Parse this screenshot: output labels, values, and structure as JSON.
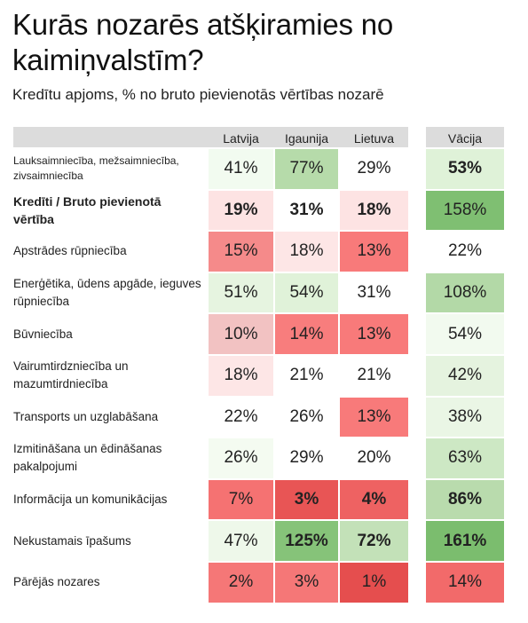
{
  "title": "Kurās nozarēs atšķiramies no kaimiņvalstīm?",
  "subtitle": "Kredītu apjoms, % no bruto pievienotās vērtības nozarē",
  "chart_data": {
    "type": "table",
    "columns": [
      "Latvija",
      "Igaunija",
      "Lietuva",
      "Vācija"
    ],
    "rows": [
      {
        "label": "Lauksaimniecība, mežsaimniecība, zivsaimniecība",
        "values": [
          41,
          77,
          29,
          53
        ],
        "display": [
          "41%",
          "77%",
          "29%",
          "53%"
        ],
        "bold": [
          false,
          false,
          false,
          true
        ],
        "colors": [
          "#f2fbf0",
          "#b6dbaa",
          "#ffffff",
          "#dff2d8"
        ],
        "label_bold": false,
        "label_small": true
      },
      {
        "label": "Kredīti / Bruto pievienotā vērtība",
        "values": [
          19,
          31,
          18,
          158
        ],
        "display": [
          "19%",
          "31%",
          "18%",
          "158%"
        ],
        "bold": [
          true,
          true,
          true,
          false
        ],
        "colors": [
          "#fde3e3",
          "#ffffff",
          "#fde3e3",
          "#7fbf72"
        ],
        "label_bold": true,
        "label_small": false
      },
      {
        "label": "Apstrādes rūpniecība",
        "values": [
          15,
          18,
          13,
          22
        ],
        "display": [
          "15%",
          "18%",
          "13%",
          "22%"
        ],
        "bold": [
          false,
          false,
          false,
          false
        ],
        "colors": [
          "#f58a8a",
          "#fde6e6",
          "#f87a7a",
          "#ffffff"
        ],
        "label_bold": false,
        "label_small": false
      },
      {
        "label": "Enerģētika, ūdens apgāde, ieguves rūpniecība",
        "values": [
          51,
          54,
          31,
          108
        ],
        "display": [
          "51%",
          "54%",
          "31%",
          "108%"
        ],
        "bold": [
          false,
          false,
          false,
          false
        ],
        "colors": [
          "#e6f4e0",
          "#e0f2d9",
          "#ffffff",
          "#b3d9a7"
        ],
        "label_bold": false,
        "label_small": false
      },
      {
        "label": "Būvniecība",
        "values": [
          10,
          14,
          13,
          54
        ],
        "display": [
          "10%",
          "14%",
          "13%",
          "54%"
        ],
        "bold": [
          false,
          false,
          false,
          false
        ],
        "colors": [
          "#f2c2c2",
          "#f87d7d",
          "#f87a7a",
          "#f2faef"
        ],
        "label_bold": false,
        "label_small": false
      },
      {
        "label": "Vairumtirdzniecība un mazumtirdniecība",
        "values": [
          18,
          21,
          21,
          42
        ],
        "display": [
          "18%",
          "21%",
          "21%",
          "42%"
        ],
        "bold": [
          false,
          false,
          false,
          false
        ],
        "colors": [
          "#fde6e6",
          "#ffffff",
          "#ffffff",
          "#e5f3df"
        ],
        "label_bold": false,
        "label_small": false
      },
      {
        "label": "Transports un uzglabāšana",
        "values": [
          22,
          26,
          13,
          38
        ],
        "display": [
          "22%",
          "26%",
          "13%",
          "38%"
        ],
        "bold": [
          false,
          false,
          false,
          false
        ],
        "colors": [
          "#ffffff",
          "#ffffff",
          "#f87a7a",
          "#eaf6e5"
        ],
        "label_bold": false,
        "label_small": false
      },
      {
        "label": "Izmitināšana un ēdināšanas pakalpojumi",
        "values": [
          26,
          29,
          20,
          63
        ],
        "display": [
          "26%",
          "29%",
          "20%",
          "63%"
        ],
        "bold": [
          false,
          false,
          false,
          false
        ],
        "colors": [
          "#f4fbf1",
          "#ffffff",
          "#ffffff",
          "#cde8c4"
        ],
        "label_bold": false,
        "label_small": false
      },
      {
        "label": "Informācija un komunikācijas",
        "values": [
          7,
          3,
          4,
          86
        ],
        "display": [
          "7%",
          "3%",
          "4%",
          "86%"
        ],
        "bold": [
          false,
          true,
          true,
          true
        ],
        "colors": [
          "#f57272",
          "#e85555",
          "#ee6262",
          "#b9dbad"
        ],
        "label_bold": false,
        "label_small": false
      },
      {
        "label": "Nekustamais īpašums",
        "values": [
          47,
          125,
          72,
          161
        ],
        "display": [
          "47%",
          "125%",
          "72%",
          "161%"
        ],
        "bold": [
          false,
          true,
          true,
          true
        ],
        "colors": [
          "#eef8ea",
          "#86c379",
          "#c3e1b8",
          "#7bbd6e"
        ],
        "label_bold": false,
        "label_small": false
      },
      {
        "label": "Pārējās nozares",
        "values": [
          2,
          3,
          1,
          14
        ],
        "display": [
          "2%",
          "3%",
          "1%",
          "14%"
        ],
        "bold": [
          false,
          false,
          false,
          false
        ],
        "colors": [
          "#f57777",
          "#f57777",
          "#e54e4e",
          "#f26a6a"
        ],
        "label_bold": false,
        "label_small": false
      }
    ]
  }
}
